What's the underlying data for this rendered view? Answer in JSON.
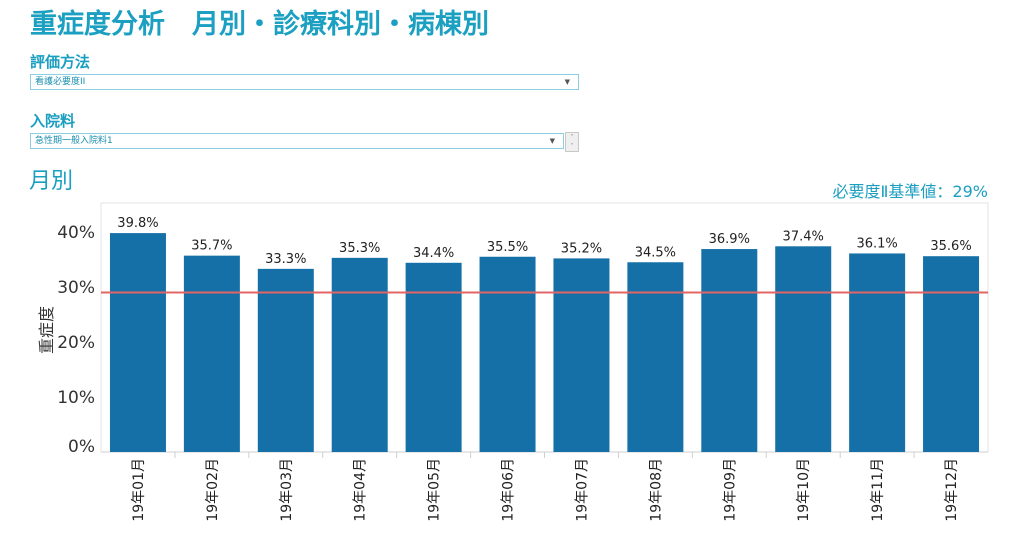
{
  "header": {
    "title": "重症度分析　月別・診療科別・病棟別"
  },
  "filters": {
    "evaluation": {
      "label": "評価方法",
      "value": "看護必要度II"
    },
    "admission": {
      "label": "入院料",
      "value": "急性期一般入院料1"
    }
  },
  "section": {
    "title": "月別"
  },
  "baseline": {
    "label": "必要度Ⅱ基準値：29%",
    "value": 29
  },
  "colors": {
    "bar": "#1570a8",
    "baseline": "#e26464",
    "accent": "#1ba0c2"
  },
  "icons": {
    "dropdown": "triangle-down-icon",
    "spinner": "spinner-icon"
  },
  "chart_data": {
    "type": "bar",
    "categories": [
      "19年01月",
      "19年02月",
      "19年03月",
      "19年04月",
      "19年05月",
      "19年06月",
      "19年07月",
      "19年08月",
      "19年09月",
      "19年10月",
      "19年11月",
      "19年12月"
    ],
    "values": [
      39.8,
      35.7,
      33.3,
      35.3,
      34.4,
      35.5,
      35.2,
      34.5,
      36.9,
      37.4,
      36.1,
      35.6
    ],
    "data_labels": [
      "39.8%",
      "35.7%",
      "33.3%",
      "35.3%",
      "34.4%",
      "35.5%",
      "35.2%",
      "34.5%",
      "36.9%",
      "37.4%",
      "36.1%",
      "35.6%"
    ],
    "ylabel": "重症度",
    "yticks": [
      0,
      10,
      20,
      30,
      40
    ],
    "ytick_labels": [
      "0%",
      "10%",
      "20%",
      "30%",
      "40%"
    ],
    "ylim": [
      0,
      45
    ],
    "reference_line": 29,
    "grid": false,
    "legend": "none"
  }
}
